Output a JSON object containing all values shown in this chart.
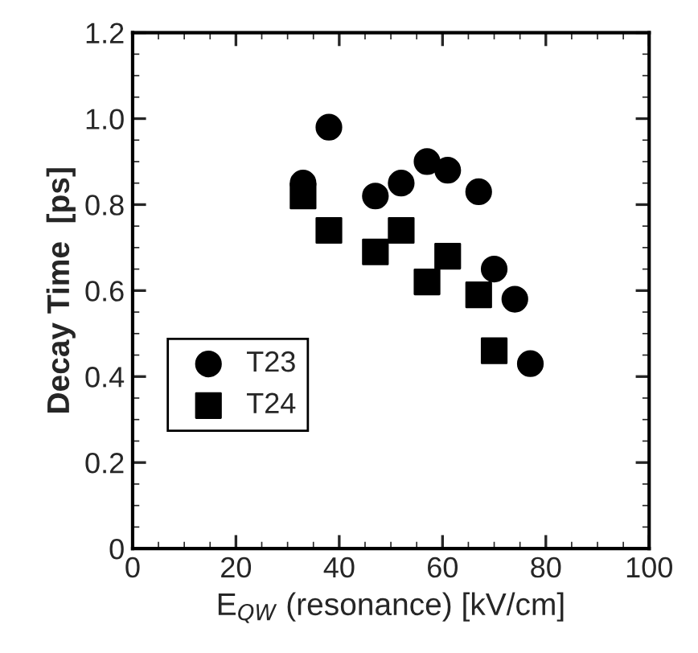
{
  "chart_data": {
    "type": "scatter",
    "xlabel": "E$_{QW}$ (resonance) [kV/cm]",
    "ylabel": "Decay Time  [ps]",
    "series": [
      {
        "name": "T23",
        "color": "#000000",
        "marker": "circle",
        "x": [
          33,
          38,
          47,
          52,
          57,
          61,
          67,
          70,
          74,
          77
        ],
        "values": [
          0.85,
          0.98,
          0.82,
          0.85,
          0.9,
          0.88,
          0.83,
          0.65,
          0.58,
          0.43
        ]
      },
      {
        "name": "T24",
        "color": "#000000",
        "marker": "square",
        "x": [
          33,
          38,
          47,
          52,
          57,
          61,
          67,
          70
        ],
        "values": [
          0.82,
          0.74,
          0.69,
          0.74,
          0.62,
          0.68,
          0.59,
          0.46
        ]
      }
    ],
    "xlim": [
      0,
      100
    ],
    "xticks": [
      0,
      20,
      40,
      60,
      80,
      100
    ],
    "ylim": [
      0,
      1.2
    ],
    "yticks": [
      0,
      0.2,
      0.4,
      0.6,
      0.8,
      {
        "value": 1.0,
        "label": "1.0"
      },
      1.2
    ],
    "grid": false,
    "legend": "bottom left"
  }
}
